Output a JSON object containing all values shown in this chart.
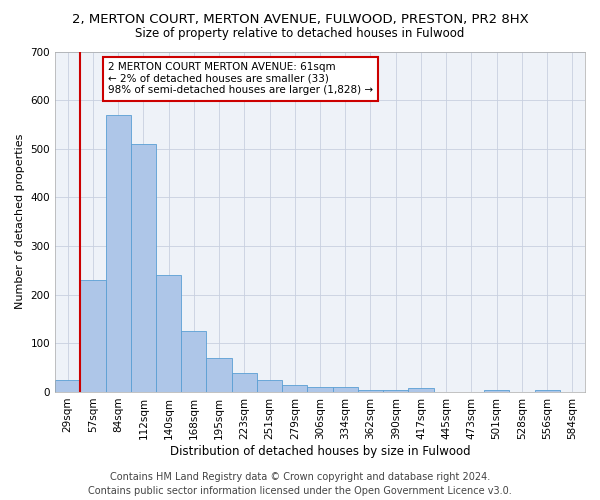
{
  "title1": "2, MERTON COURT, MERTON AVENUE, FULWOOD, PRESTON, PR2 8HX",
  "title2": "Size of property relative to detached houses in Fulwood",
  "xlabel": "Distribution of detached houses by size in Fulwood",
  "ylabel": "Number of detached properties",
  "categories": [
    "29sqm",
    "57sqm",
    "84sqm",
    "112sqm",
    "140sqm",
    "168sqm",
    "195sqm",
    "223sqm",
    "251sqm",
    "279sqm",
    "306sqm",
    "334sqm",
    "362sqm",
    "390sqm",
    "417sqm",
    "445sqm",
    "473sqm",
    "501sqm",
    "528sqm",
    "556sqm",
    "584sqm"
  ],
  "values": [
    25,
    230,
    570,
    510,
    240,
    125,
    70,
    40,
    25,
    15,
    10,
    10,
    5,
    5,
    8,
    0,
    0,
    5,
    0,
    5,
    0
  ],
  "bar_color": "#aec6e8",
  "bar_edge_color": "#5a9fd4",
  "vline_x_index": 1,
  "vline_color": "#cc0000",
  "annotation_text": "2 MERTON COURT MERTON AVENUE: 61sqm\n← 2% of detached houses are smaller (33)\n98% of semi-detached houses are larger (1,828) →",
  "annotation_box_color": "#ffffff",
  "annotation_box_edge": "#cc0000",
  "ylim": [
    0,
    700
  ],
  "yticks": [
    0,
    100,
    200,
    300,
    400,
    500,
    600,
    700
  ],
  "bg_color": "#eef2f8",
  "footer1": "Contains HM Land Registry data © Crown copyright and database right 2024.",
  "footer2": "Contains public sector information licensed under the Open Government Licence v3.0.",
  "title1_fontsize": 9.5,
  "title2_fontsize": 8.5,
  "xlabel_fontsize": 8.5,
  "ylabel_fontsize": 8,
  "tick_fontsize": 7.5,
  "annot_fontsize": 7.5,
  "footer_fontsize": 7
}
